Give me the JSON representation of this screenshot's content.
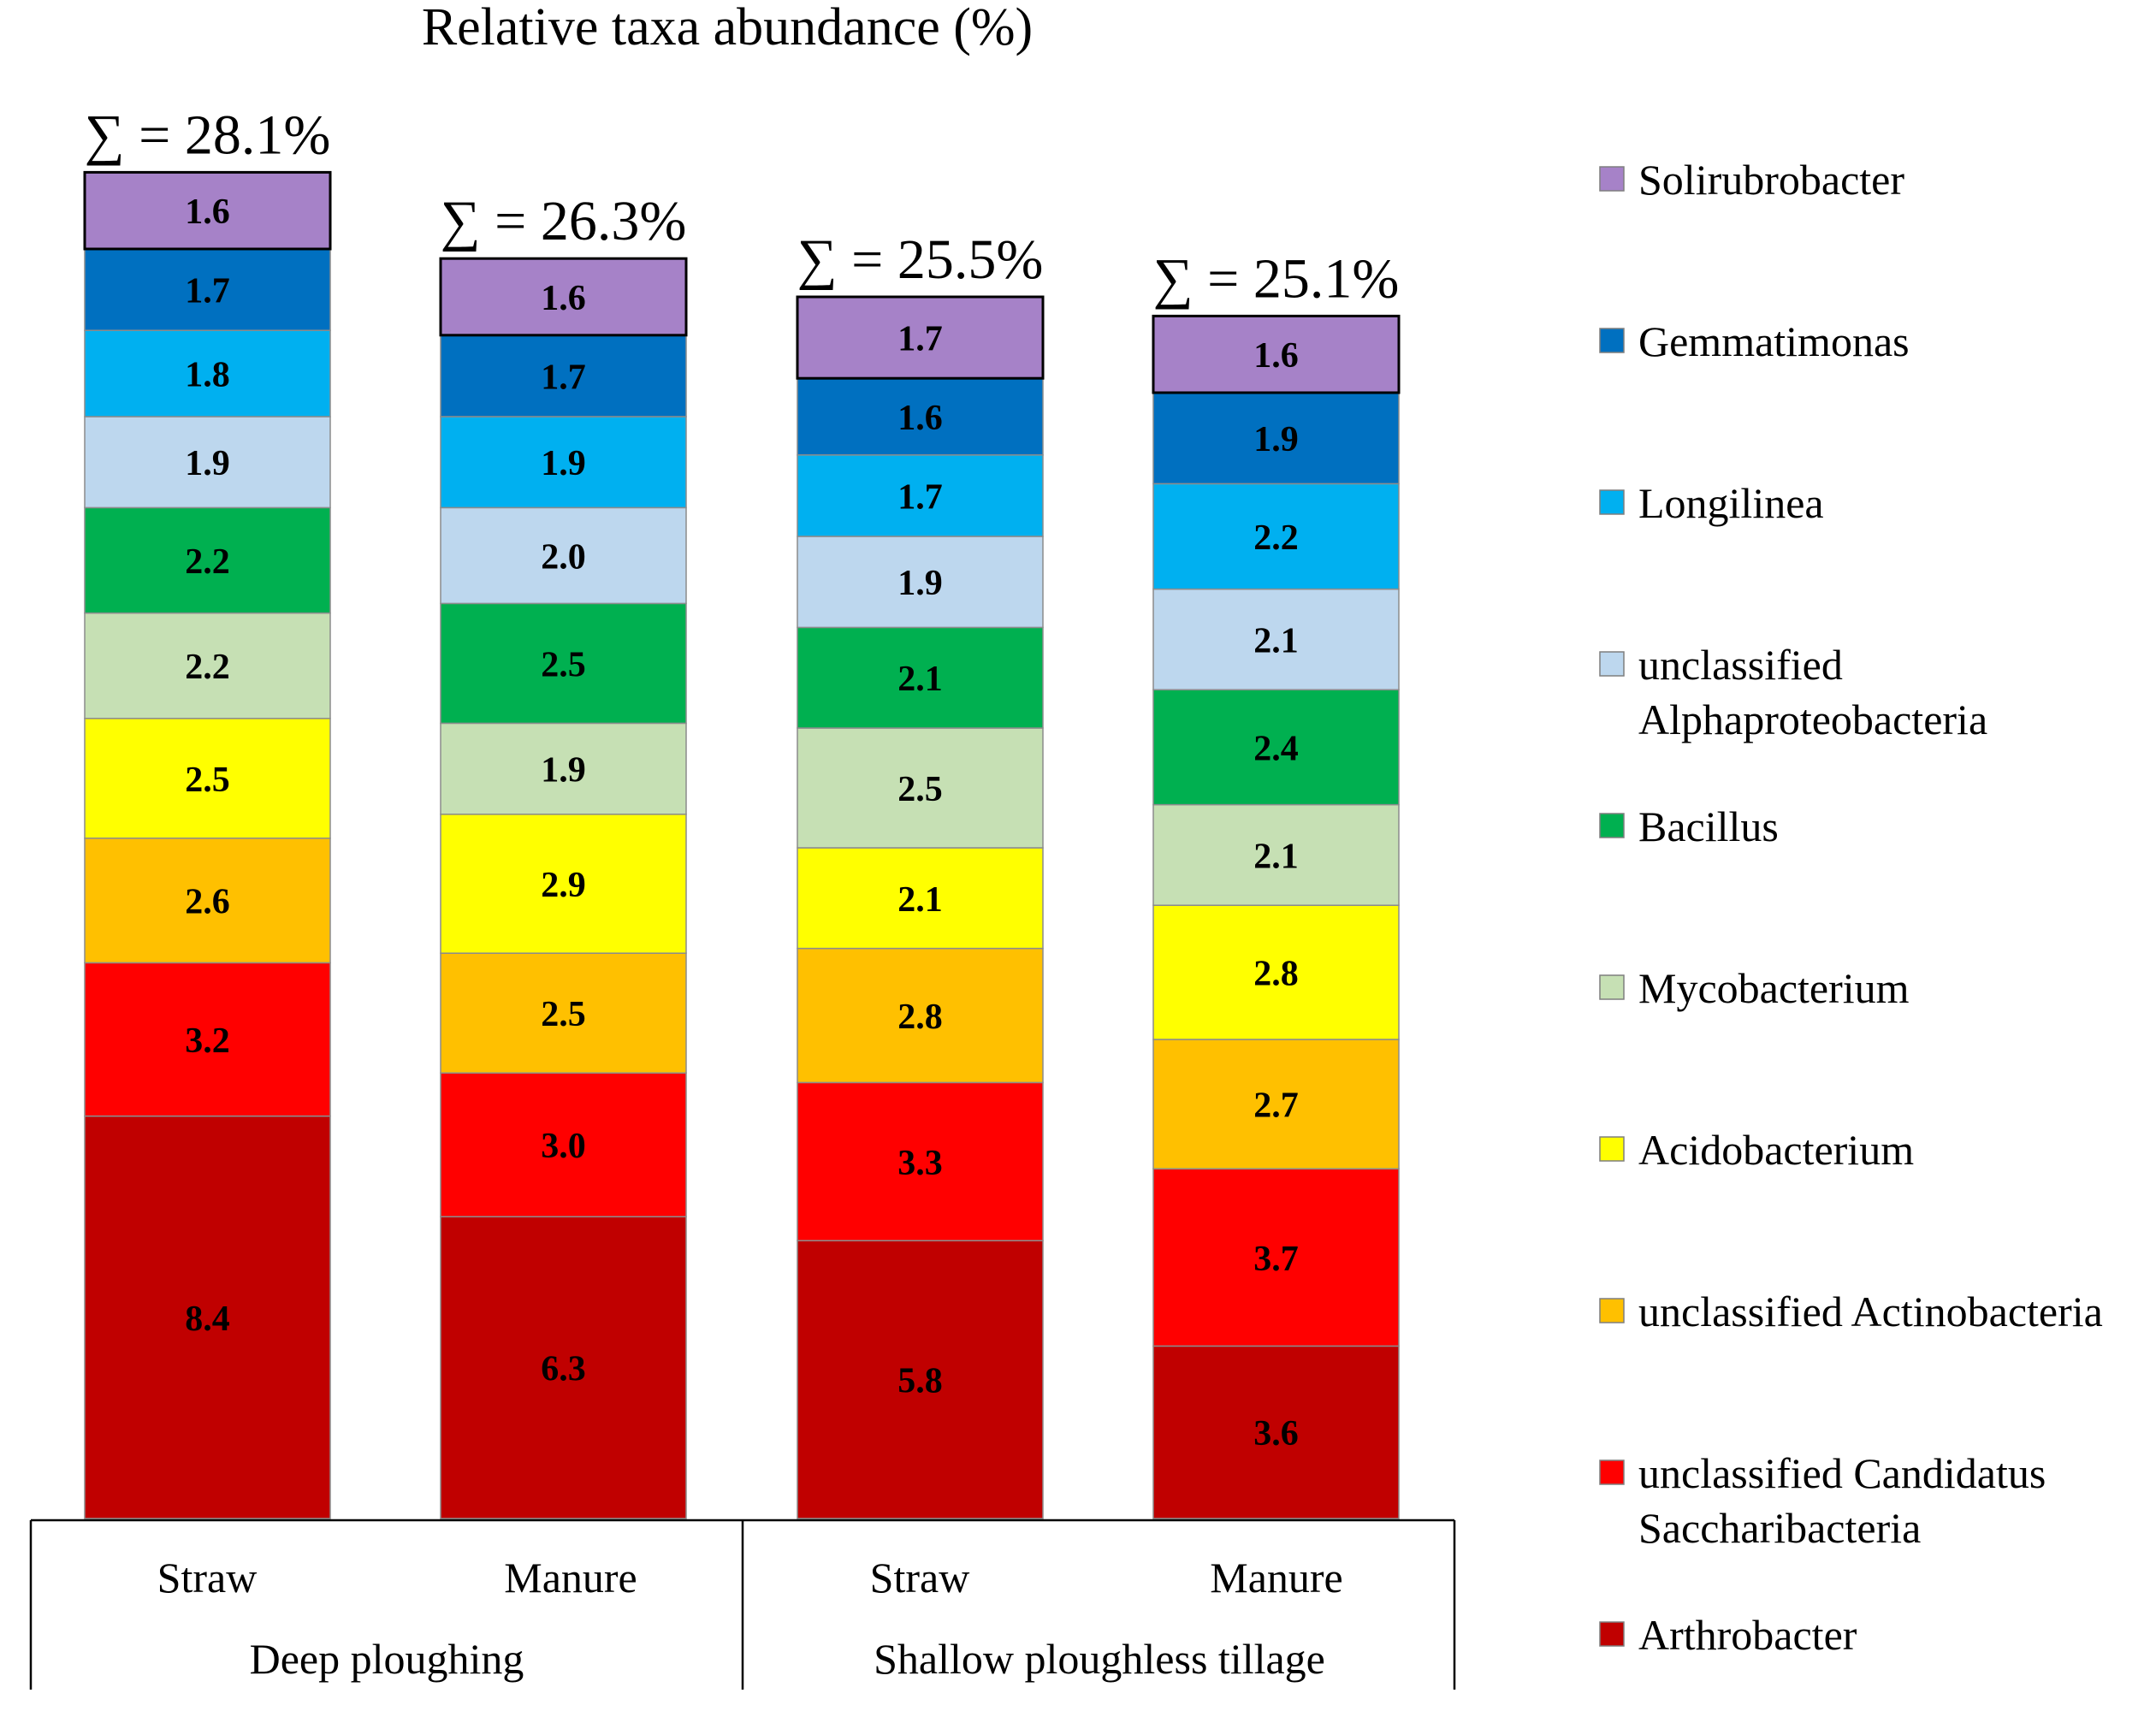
{
  "chart_data": {
    "type": "bar",
    "stacked": true,
    "title": "Relative taxa abundance (%)",
    "xlabel": "",
    "ylabel": "",
    "categories": [
      "Straw",
      "Manure",
      "Straw",
      "Manure"
    ],
    "groups": [
      {
        "label": "Deep ploughing",
        "categories": [
          0,
          1
        ]
      },
      {
        "label": "Shallow ploughless tillage",
        "categories": [
          2,
          3
        ]
      }
    ],
    "totals": [
      "∑ = 28.1%",
      "∑ = 26.3%",
      "∑ = 25.5%",
      "∑ = 25.1%"
    ],
    "series": [
      {
        "name": "Arthrobacter",
        "color": "#C00000",
        "values": [
          8.4,
          6.3,
          5.8,
          3.6
        ]
      },
      {
        "name": "unclassified Candidatus Saccharibacteria",
        "color": "#FF0000",
        "values": [
          3.2,
          3.0,
          3.3,
          3.7
        ]
      },
      {
        "name": "unclassified Actinobacteria",
        "color": "#FFC000",
        "values": [
          2.6,
          2.5,
          2.8,
          2.7
        ]
      },
      {
        "name": "Acidobacterium",
        "color": "#FFFF00",
        "values": [
          2.5,
          2.9,
          2.1,
          2.8
        ]
      },
      {
        "name": "Mycobacterium",
        "color": "#C6E0B4",
        "values": [
          2.2,
          1.9,
          2.5,
          2.1
        ]
      },
      {
        "name": "Bacillus",
        "color": "#00B050",
        "values": [
          2.2,
          2.5,
          2.1,
          2.4
        ]
      },
      {
        "name": "unclassified Alphaproteobacteria",
        "color": "#BDD7EE",
        "values": [
          1.9,
          2.0,
          1.9,
          2.1
        ]
      },
      {
        "name": "Longilinea",
        "color": "#00B0F0",
        "values": [
          1.8,
          1.9,
          1.7,
          2.2
        ]
      },
      {
        "name": "Gemmatimonas",
        "color": "#0070C0",
        "values": [
          1.7,
          1.7,
          1.6,
          1.9
        ]
      },
      {
        "name": "Solirubrobacter",
        "color": "#A682C8",
        "values": [
          1.6,
          1.6,
          1.7,
          1.6
        ]
      }
    ],
    "legend": [
      [
        "Solirubrobacter"
      ],
      [
        "Gemmatimonas"
      ],
      [
        "Longilinea"
      ],
      [
        "unclassified",
        "Alphaproteobacteria"
      ],
      [
        "Bacillus"
      ],
      [
        "Mycobacterium"
      ],
      [
        "Acidobacterium"
      ],
      [
        "unclassified Actinobacteria"
      ],
      [
        "unclassified Candidatus",
        "Saccharibacteria"
      ],
      [
        "Arthrobacter"
      ]
    ],
    "legend_position": "right",
    "grid": false
  }
}
